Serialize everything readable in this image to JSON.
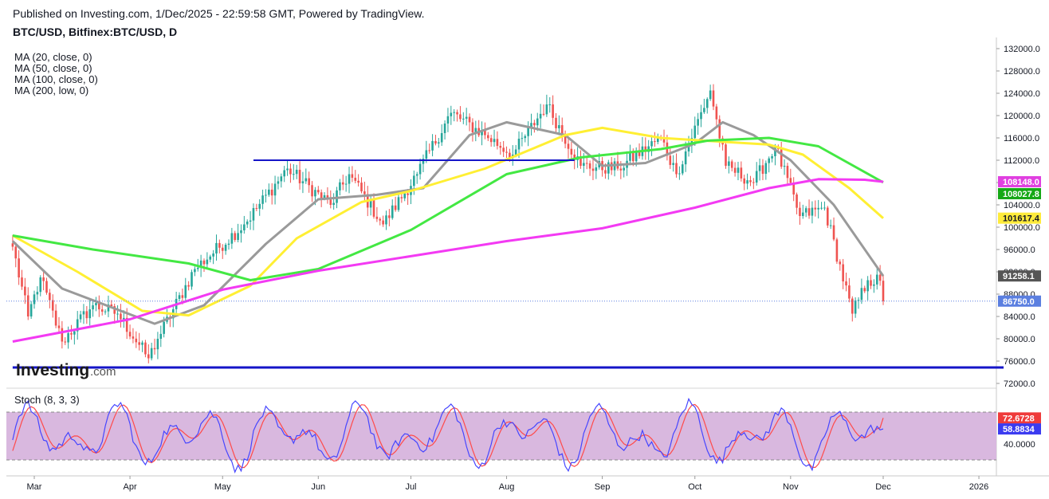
{
  "header": {
    "published": "Published on Investing.com, 1/Dec/2025 - 22:59:58 GMT, Powered by TradingView.",
    "symbol": "BTC/USD, Bitfinex:BTC/USD, D"
  },
  "legend": [
    "MA (20, close, 0)",
    "MA (50, close, 0)",
    "MA (100, close, 0)",
    "MA (200, low, 0)"
  ],
  "watermark": {
    "brand": "Investing",
    "suffix": ".com"
  },
  "stoch": {
    "label": "Stoch (8, 3, 3)"
  },
  "colors": {
    "up": "#26a69a",
    "down": "#ef5350",
    "ma20": "#9a9a9a",
    "ma50": "#ffef33",
    "ma100": "#43e843",
    "ma200": "#f33af3",
    "trendline": "#1515c8",
    "k_line": "#4646ff",
    "d_line": "#ff4a4a",
    "stoch_band": "#d9b8df"
  },
  "chart_data": {
    "type": "candlestick",
    "y_ticks": [
      132000,
      128000,
      124000,
      120000,
      116000,
      112000,
      108000,
      104000,
      100000,
      96000,
      92000,
      88000,
      84000,
      80000,
      76000,
      72000
    ],
    "y_tick_labels": [
      "132000.0",
      "128000.0",
      "124000.0",
      "120000.0",
      "116000.0",
      "112000.0",
      "108000.0",
      "104000.0",
      "100000.0",
      "96000.0",
      "92000.0",
      "88000.0",
      "84000.0",
      "80000.0",
      "76000.0",
      "72000.0"
    ],
    "x_ticks": [
      {
        "label": "Mar",
        "date": "2025-03-01"
      },
      {
        "label": "Apr",
        "date": "2025-04-01"
      },
      {
        "label": "May",
        "date": "2025-05-01"
      },
      {
        "label": "Jun",
        "date": "2025-06-01"
      },
      {
        "label": "Jul",
        "date": "2025-07-01"
      },
      {
        "label": "Aug",
        "date": "2025-08-01"
      },
      {
        "label": "Sep",
        "date": "2025-09-01"
      },
      {
        "label": "Oct",
        "date": "2025-10-01"
      },
      {
        "label": "Nov",
        "date": "2025-11-01"
      },
      {
        "label": "Dec",
        "date": "2025-12-01"
      },
      {
        "label": "2026",
        "date": "2026-01-01"
      }
    ],
    "price_anchors": [
      [
        "2025-02-22",
        96500
      ],
      [
        "2025-02-27",
        84000
      ],
      [
        "2025-03-03",
        91000
      ],
      [
        "2025-03-10",
        79500
      ],
      [
        "2025-03-20",
        86000
      ],
      [
        "2025-03-28",
        84500
      ],
      [
        "2025-04-07",
        76500
      ],
      [
        "2025-04-10",
        80000
      ],
      [
        "2025-04-22",
        92500
      ],
      [
        "2025-05-08",
        100500
      ],
      [
        "2025-05-22",
        110500
      ],
      [
        "2025-06-05",
        104000
      ],
      [
        "2025-06-11",
        109500
      ],
      [
        "2025-06-22",
        100500
      ],
      [
        "2025-07-03",
        109500
      ],
      [
        "2025-07-14",
        120500
      ],
      [
        "2025-07-25",
        116500
      ],
      [
        "2025-08-03",
        113000
      ],
      [
        "2025-08-14",
        122000
      ],
      [
        "2025-08-25",
        111000
      ],
      [
        "2025-09-06",
        110500
      ],
      [
        "2025-09-20",
        116000
      ],
      [
        "2025-09-25",
        109500
      ],
      [
        "2025-10-06",
        124500
      ],
      [
        "2025-10-11",
        111000
      ],
      [
        "2025-10-20",
        108000
      ],
      [
        "2025-10-27",
        114500
      ],
      [
        "2025-11-04",
        102000
      ],
      [
        "2025-11-12",
        103500
      ],
      [
        "2025-11-21",
        84500
      ],
      [
        "2025-11-26",
        90500
      ],
      [
        "2025-11-30",
        90400
      ],
      [
        "2025-12-01",
        86750
      ]
    ],
    "series": [
      {
        "name": "MA (20, close, 0)",
        "points": [
          [
            "2025-02-22",
            97500
          ],
          [
            "2025-03-10",
            89000
          ],
          [
            "2025-04-09",
            82700
          ],
          [
            "2025-04-25",
            86000
          ],
          [
            "2025-05-15",
            97000
          ],
          [
            "2025-06-01",
            105000
          ],
          [
            "2025-06-20",
            105800
          ],
          [
            "2025-07-05",
            107000
          ],
          [
            "2025-07-20",
            116500
          ],
          [
            "2025-08-01",
            118800
          ],
          [
            "2025-08-20",
            116500
          ],
          [
            "2025-09-01",
            111000
          ],
          [
            "2025-09-15",
            111500
          ],
          [
            "2025-10-01",
            115000
          ],
          [
            "2025-10-10",
            118800
          ],
          [
            "2025-10-20",
            116500
          ],
          [
            "2025-11-01",
            112000
          ],
          [
            "2025-11-15",
            104000
          ],
          [
            "2025-12-01",
            91258
          ]
        ]
      },
      {
        "name": "MA (50, close, 0)",
        "points": [
          [
            "2025-02-22",
            98500
          ],
          [
            "2025-03-15",
            92000
          ],
          [
            "2025-04-05",
            85000
          ],
          [
            "2025-04-20",
            84200
          ],
          [
            "2025-05-10",
            89500
          ],
          [
            "2025-05-25",
            98000
          ],
          [
            "2025-06-15",
            104500
          ],
          [
            "2025-07-01",
            106500
          ],
          [
            "2025-07-25",
            110500
          ],
          [
            "2025-08-20",
            116500
          ],
          [
            "2025-09-01",
            117800
          ],
          [
            "2025-09-20",
            116000
          ],
          [
            "2025-10-10",
            115300
          ],
          [
            "2025-10-25",
            114800
          ],
          [
            "2025-11-05",
            113000
          ],
          [
            "2025-11-20",
            107000
          ],
          [
            "2025-12-01",
            101617
          ]
        ]
      },
      {
        "name": "MA (100, close, 0)",
        "points": [
          [
            "2025-02-22",
            98500
          ],
          [
            "2025-03-20",
            96000
          ],
          [
            "2025-04-20",
            93500
          ],
          [
            "2025-05-10",
            90500
          ],
          [
            "2025-06-01",
            92500
          ],
          [
            "2025-07-01",
            99500
          ],
          [
            "2025-08-01",
            109500
          ],
          [
            "2025-08-25",
            112500
          ],
          [
            "2025-09-20",
            114000
          ],
          [
            "2025-10-05",
            115500
          ],
          [
            "2025-10-25",
            116000
          ],
          [
            "2025-11-10",
            114500
          ],
          [
            "2025-12-01",
            108028
          ]
        ]
      },
      {
        "name": "MA (200, low, 0)",
        "points": [
          [
            "2025-02-22",
            79500
          ],
          [
            "2025-04-01",
            83500
          ],
          [
            "2025-05-01",
            88800
          ],
          [
            "2025-06-01",
            92200
          ],
          [
            "2025-07-01",
            94800
          ],
          [
            "2025-08-01",
            97500
          ],
          [
            "2025-09-01",
            99800
          ],
          [
            "2025-10-01",
            103500
          ],
          [
            "2025-10-25",
            107000
          ],
          [
            "2025-11-10",
            108600
          ],
          [
            "2025-11-25",
            108500
          ],
          [
            "2025-12-01",
            108148
          ]
        ]
      }
    ],
    "trendlines": [
      {
        "from": [
          "2025-05-11",
          112000
        ],
        "to": [
          "2025-08-23",
          112000
        ]
      },
      {
        "from": [
          "2025-02-22",
          74850
        ],
        "to": [
          "2026-01-09",
          74850
        ]
      }
    ],
    "price_labels": [
      {
        "value": 108148.0,
        "text": "108148.0",
        "color": "#e040e0"
      },
      {
        "value": 108027.8,
        "text": "108027.8",
        "color": "#16a816"
      },
      {
        "value": 101617.4,
        "text": "101617.4",
        "color": "#ffeb3b"
      },
      {
        "value": 91258.1,
        "text": "91258.1",
        "color": "#555555"
      },
      {
        "value": 86750.0,
        "text": "86750.0",
        "color": "#5b7fe0"
      }
    ],
    "stoch": {
      "y_ticks": [
        40
      ],
      "y_tick_labels": [
        "40.0000"
      ],
      "band": [
        20,
        80
      ],
      "k_value": 58.8834,
      "d_value": 72.6728,
      "k_label": "58.8834",
      "d_label": "72.6728"
    }
  }
}
